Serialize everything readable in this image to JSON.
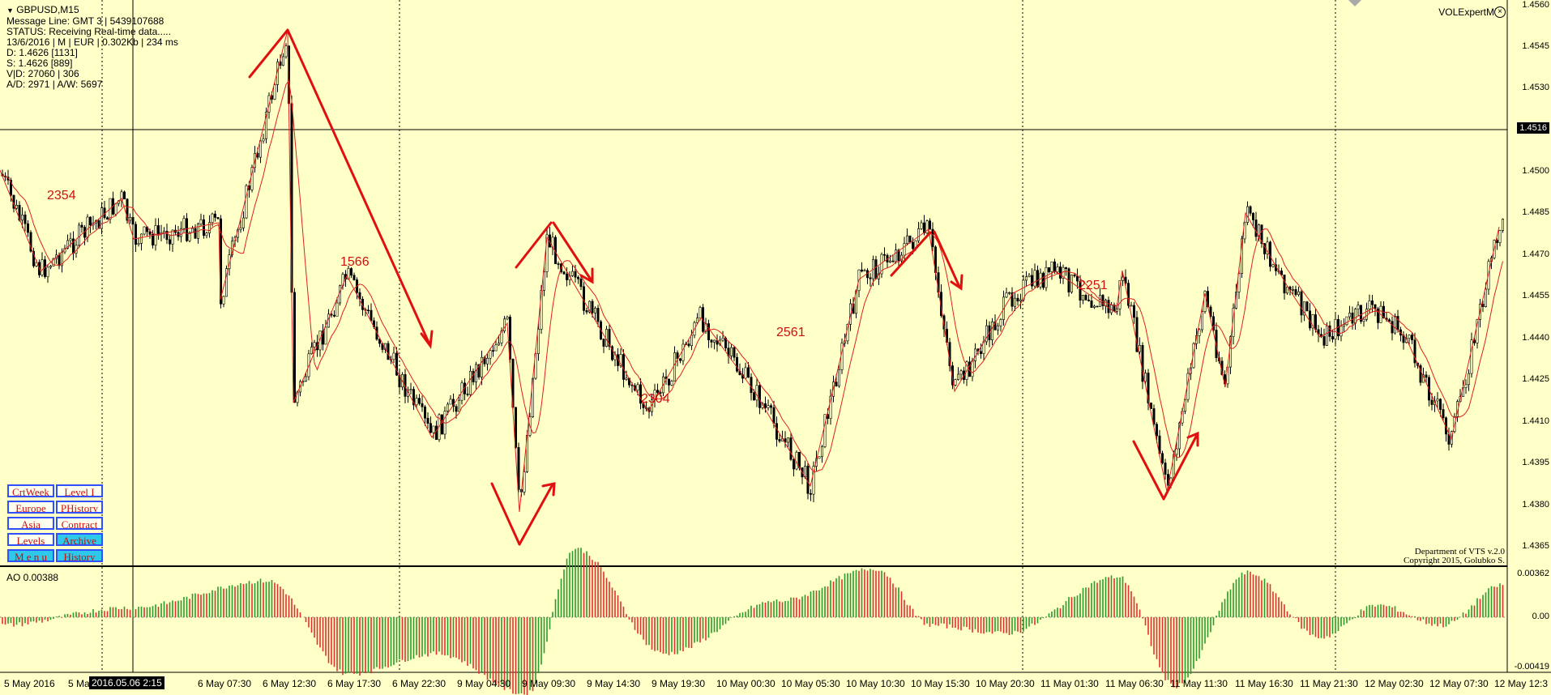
{
  "symbol": "GBPUSD,M15",
  "info_lines": [
    "Message Line: GMT 3 | 5439107688",
    "STATUS:  Receiving Real-time data.....",
    "13/6/2016 | M | EUR | 0.302Kb | 234 ms",
    "D: 1.4626  [1131]",
    "S: 1.4626  [889]",
    "V|D: 27060 | 306",
    "A/D: 2971 | A/W: 5697"
  ],
  "indicator_name": "VOLExpertME",
  "buttons": [
    {
      "label": "CrtWeek",
      "style": "white"
    },
    {
      "label": "Level I",
      "style": "white"
    },
    {
      "label": "Europe",
      "style": "white"
    },
    {
      "label": "PHistory",
      "style": "white"
    },
    {
      "label": "Asia",
      "style": "white"
    },
    {
      "label": "Contract",
      "style": "white"
    },
    {
      "label": "Levels",
      "style": "white"
    },
    {
      "label": "Archive",
      "style": "cyan"
    },
    {
      "label": "M e n u",
      "style": "cyan"
    },
    {
      "label": "History",
      "style": "cyan"
    }
  ],
  "copyright_lines": [
    "Department of VTS  v.2.0",
    "Copyright 2015, Golubko S."
  ],
  "wave_labels": [
    "2354",
    "1566",
    "2561",
    "2304",
    "2251"
  ],
  "ao_title": "AO 0.00388",
  "price_axis": [
    "1.4560",
    "1.4545",
    "1.4530",
    "1.4500",
    "1.4485",
    "1.4470",
    "1.4455",
    "1.4440",
    "1.4425",
    "1.4410",
    "1.4395",
    "1.4380",
    "1.4365"
  ],
  "current_price": "1.4516",
  "ao_axis": [
    "0.00362",
    "0.00",
    "-0.00419"
  ],
  "time_axis": [
    "5 May 2016",
    "5 Ma",
    "6 May 07:30",
    "6 May 12:30",
    "6 May 17:30",
    "6 May 22:30",
    "9 May 04:30",
    "9 May 09:30",
    "9 May 14:30",
    "9 May 19:30",
    "10 May 00:30",
    "10 May 05:30",
    "10 May 10:30",
    "10 May 15:30",
    "10 May 20:30",
    "11 May 01:30",
    "11 May 06:30",
    "11 May 11:30",
    "11 May 16:30",
    "11 May 21:30",
    "12 May 02:30",
    "12 May 07:30",
    "12 May 12:3"
  ],
  "time_cursor": "2016.05.06 2:15",
  "colors": {
    "background": "#FFFFC8",
    "candle": "#000000",
    "wave": "#E01010",
    "ao_up": "#2a9a2a",
    "ao_down": "#e03030",
    "button_border": "#3050ff",
    "button_cyan": "#2ec9e8"
  },
  "icons": {
    "collapse": "triangle-down-icon",
    "close": "circle-close-icon"
  }
}
